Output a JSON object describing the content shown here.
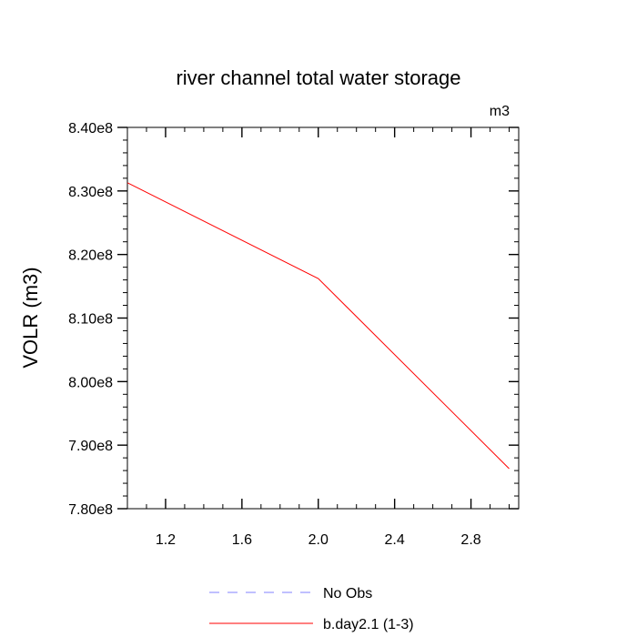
{
  "chart_data": {
    "type": "line",
    "title": "river channel total water storage",
    "units_label": "m3",
    "xlabel": "",
    "ylabel": "VOLR  (m3)",
    "xlim": [
      1.0,
      3.05
    ],
    "ylim": [
      780000000,
      840000000
    ],
    "x_ticks": [
      1.2,
      1.6,
      2.0,
      2.4,
      2.8
    ],
    "x_tick_labels": [
      "1.2",
      "1.6",
      "2.0",
      "2.4",
      "2.8"
    ],
    "y_ticks": [
      780000000,
      790000000,
      800000000,
      810000000,
      820000000,
      830000000,
      840000000
    ],
    "y_tick_labels": [
      "7.80e8",
      "7.90e8",
      "8.00e8",
      "8.10e8",
      "8.20e8",
      "8.30e8",
      "8.40e8"
    ],
    "grid": false,
    "legend_placement": "bottom",
    "series": [
      {
        "name": "No Obs",
        "color": "#8080ff",
        "dash": "dashed",
        "x": [],
        "y": []
      },
      {
        "name": "b.day2.1 (1-3)",
        "color": "#ff0000",
        "dash": "solid",
        "x": [
          1.0,
          2.0,
          3.0
        ],
        "y": [
          831300000,
          816200000,
          786300000
        ]
      }
    ]
  }
}
